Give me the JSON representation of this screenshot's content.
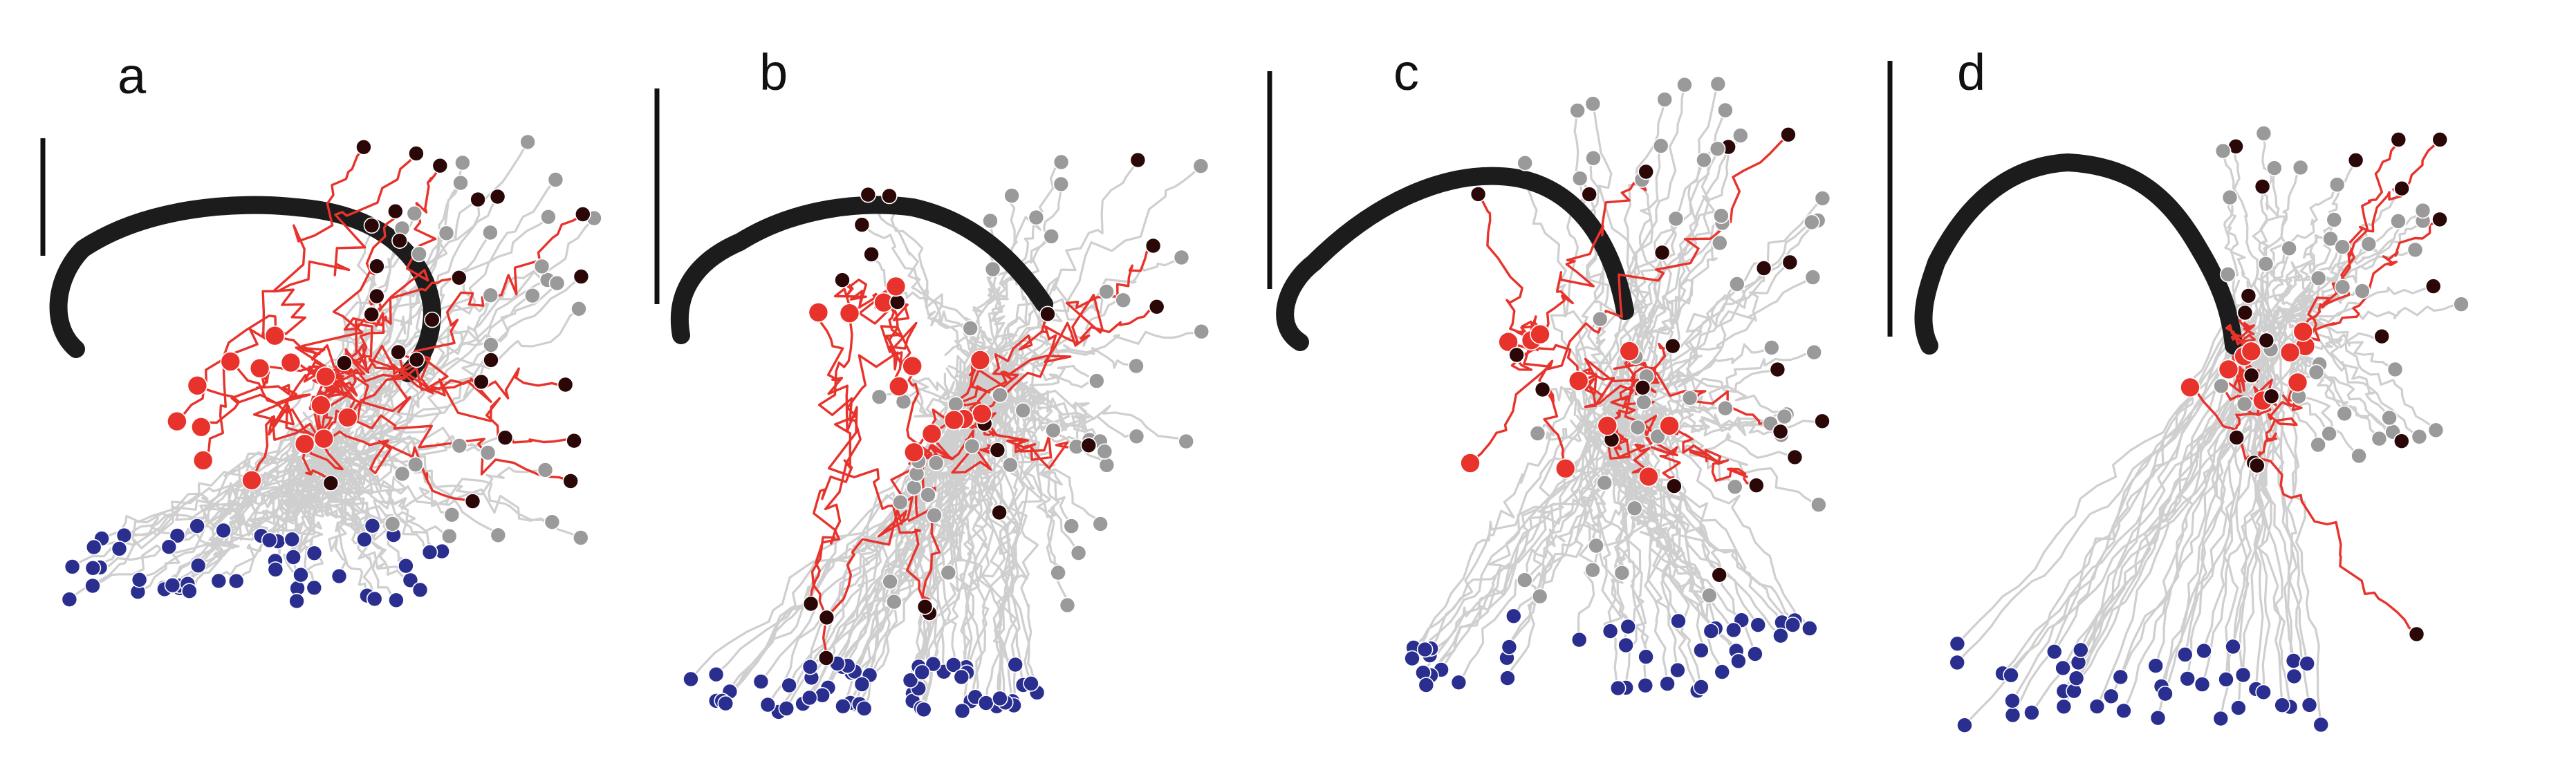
{
  "panels": [
    {
      "id": "a",
      "label": "a"
    },
    {
      "id": "b",
      "label": "b"
    },
    {
      "id": "c",
      "label": "c"
    },
    {
      "id": "d",
      "label": "d"
    }
  ],
  "colors": {
    "arc": "#1c1c1c",
    "trail_other": "#cfcfcf",
    "trail_highlight": "#e8332c",
    "marker_red": "#e8332c",
    "marker_blue": "#2a2f8f",
    "marker_grey": "#9a9a9a",
    "marker_dark": "#2b0707",
    "scalebar": "#111111"
  }
}
